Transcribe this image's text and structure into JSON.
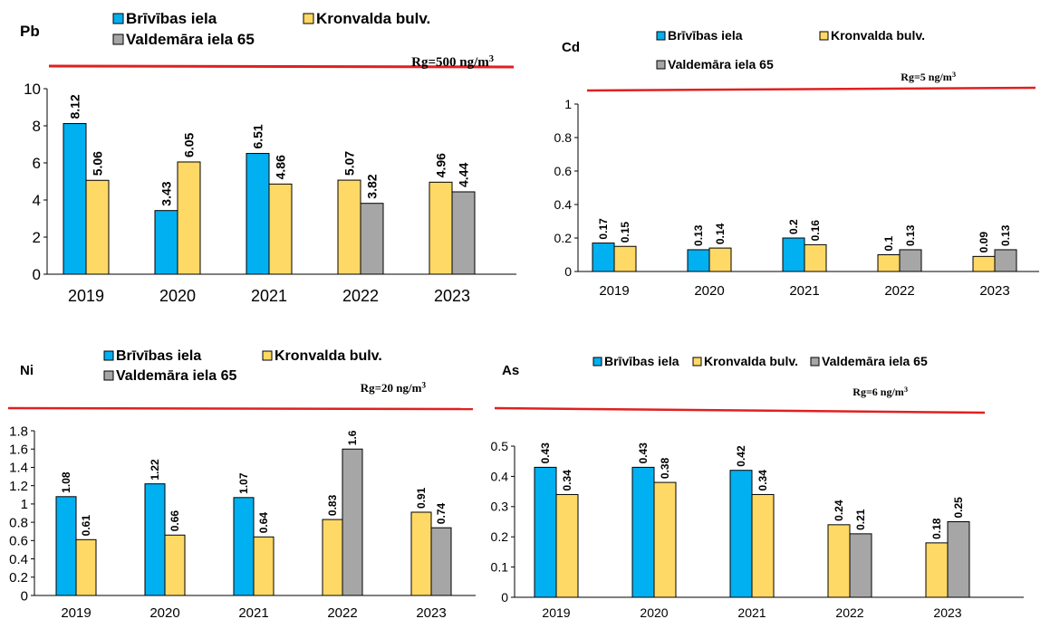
{
  "colors": {
    "bars": [
      "#00B0F0",
      "#FFD966",
      "#A6A6A6"
    ],
    "limit_line": "#E02020"
  },
  "chart_data": [
    {
      "type": "bar",
      "title": "Pb",
      "categories": [
        "2019",
        "2020",
        "2021",
        "2022",
        "2023"
      ],
      "series": [
        {
          "name": "Brīvības iela",
          "values": [
            8.12,
            3.43,
            6.51,
            null,
            null
          ]
        },
        {
          "name": "Kronvalda bulv.",
          "values": [
            5.06,
            6.05,
            4.86,
            5.07,
            4.96
          ]
        },
        {
          "name": "Valdemāra iela 65",
          "values": [
            null,
            null,
            null,
            3.82,
            4.44
          ]
        }
      ],
      "data_labels": [
        [
          "8.12",
          "3.43",
          "6.51",
          "",
          ""
        ],
        [
          "5.06",
          "6.05",
          "4.86",
          "5.07",
          "4.96"
        ],
        [
          "",
          "",
          "",
          "3.82",
          "4.44"
        ]
      ],
      "yticks": [
        "0",
        "2",
        "4",
        "6",
        "8",
        "10"
      ],
      "ylim": [
        0,
        10
      ],
      "limit_label": "Rg=500 ng/m",
      "limit_unit_sup": "3",
      "legend": "top"
    },
    {
      "type": "bar",
      "title": "Cd",
      "categories": [
        "2019",
        "2020",
        "2021",
        "2022",
        "2023"
      ],
      "series": [
        {
          "name": "Brīvības iela",
          "values": [
            0.17,
            0.13,
            0.2,
            null,
            null
          ]
        },
        {
          "name": "Kronvalda bulv.",
          "values": [
            0.15,
            0.14,
            0.16,
            0.1,
            0.09
          ]
        },
        {
          "name": "Valdemāra iela 65",
          "values": [
            null,
            null,
            null,
            0.13,
            0.13
          ]
        }
      ],
      "data_labels": [
        [
          "0.17",
          "0.13",
          "0.2",
          "",
          ""
        ],
        [
          "0.15",
          "0.14",
          "0.16",
          "0.1",
          "0.09"
        ],
        [
          "",
          "",
          "",
          "0.13",
          "0.13"
        ]
      ],
      "yticks": [
        "0",
        "0.2",
        "0.4",
        "0.6",
        "0.8",
        "1"
      ],
      "ylim": [
        0,
        1
      ],
      "limit_label": "Rg=5 ng/m",
      "limit_unit_sup": "3",
      "legend": "top"
    },
    {
      "type": "bar",
      "title": "Ni",
      "categories": [
        "2019",
        "2020",
        "2021",
        "2022",
        "2023"
      ],
      "series": [
        {
          "name": "Brīvības iela",
          "values": [
            1.08,
            1.22,
            1.07,
            null,
            null
          ]
        },
        {
          "name": "Kronvalda bulv.",
          "values": [
            0.61,
            0.66,
            0.64,
            0.83,
            0.91
          ]
        },
        {
          "name": "Valdemāra iela 65",
          "values": [
            null,
            null,
            null,
            1.6,
            0.74
          ]
        }
      ],
      "data_labels": [
        [
          "1.08",
          "1.22",
          "1.07",
          "",
          ""
        ],
        [
          "0.61",
          "0.66",
          "0.64",
          "0.83",
          "0.91"
        ],
        [
          "",
          "",
          "",
          "1.6",
          "0.74"
        ]
      ],
      "yticks": [
        "0",
        "0.2",
        "0.4",
        "0.6",
        "0.8",
        "1",
        "1.2",
        "1.4",
        "1.6",
        "1.8"
      ],
      "ylim": [
        0,
        1.8
      ],
      "limit_label": "Rg=20 ng/m",
      "limit_unit_sup": "3",
      "legend": "top"
    },
    {
      "type": "bar",
      "title": "As",
      "categories": [
        "2019",
        "2020",
        "2021",
        "2022",
        "2023"
      ],
      "series": [
        {
          "name": "Brīvības iela",
          "values": [
            0.43,
            0.43,
            0.42,
            null,
            null
          ]
        },
        {
          "name": "Kronvalda bulv.",
          "values": [
            0.34,
            0.38,
            0.34,
            0.24,
            0.18
          ]
        },
        {
          "name": "Valdemāra iela 65",
          "values": [
            null,
            null,
            null,
            0.21,
            0.25
          ]
        }
      ],
      "data_labels": [
        [
          "0.43",
          "0.43",
          "0.42",
          "",
          ""
        ],
        [
          "0.34",
          "0.38",
          "0.34",
          "0.24",
          "0.18"
        ],
        [
          "",
          "",
          "",
          "0.21",
          "0.25"
        ]
      ],
      "yticks": [
        "0",
        "0.1",
        "0.2",
        "0.3",
        "0.4",
        "0.5"
      ],
      "ylim": [
        0,
        0.5
      ],
      "limit_label": "Rg=6 ng/m",
      "limit_unit_sup": "3",
      "legend": "top"
    }
  ]
}
